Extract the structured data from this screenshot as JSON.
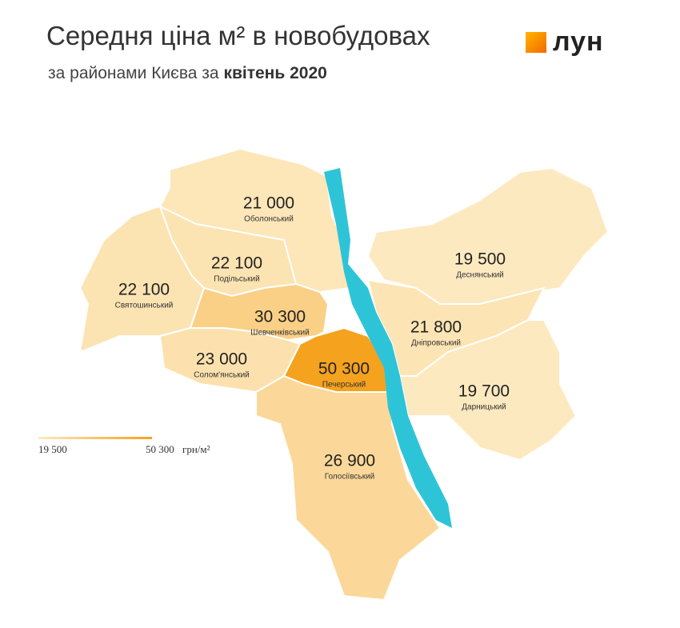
{
  "map": {
    "type": "choropleth",
    "title": "Середня ціна м² в новобудовах",
    "subtitle": "за районами Києва за ",
    "subtitle_bold": "квітень 2020",
    "logo": "лун",
    "districts": [
      "Оболонський",
      "Подільський",
      "Святошинський",
      "Шевченківський",
      "Солом'янський",
      "Печерський",
      "Голосіївський",
      "Деснянський",
      "Дніпровський",
      "Дарницький"
    ],
    "values": [
      21000,
      22100,
      22100,
      30300,
      23000,
      50300,
      26900,
      19500,
      21800,
      19700
    ],
    "value_labels": [
      "21 000",
      "22 100",
      "22 100",
      "30 300",
      "23 000",
      "50 300",
      "26 900",
      "19 500",
      "21 800",
      "19 700"
    ],
    "legend": {
      "min": {
        "value": 19500,
        "label": "19 500"
      },
      "max": {
        "value": 50300,
        "label": "50 300"
      },
      "unit": "грн/м²",
      "colors": [
        "#fde9c0",
        "#f5a21e"
      ]
    },
    "river_color": "#2ec4d8"
  }
}
